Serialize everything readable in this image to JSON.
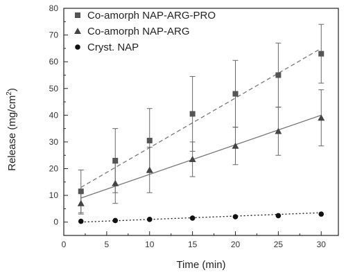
{
  "chart_data": {
    "type": "scatter",
    "title": "",
    "xlabel": "Time (min)",
    "ylabel_main": "Release (mg/cm",
    "ylabel_sup": "2",
    "ylabel_end": ")",
    "xlim": [
      0,
      32
    ],
    "ylim": [
      -5,
      80
    ],
    "xticks": [
      0,
      5,
      10,
      15,
      20,
      25,
      30
    ],
    "yticks": [
      0,
      10,
      20,
      30,
      40,
      50,
      60,
      70,
      80
    ],
    "grid": false,
    "legend_position": "top-left",
    "x": [
      2,
      6,
      10,
      15,
      20,
      25,
      30
    ],
    "series": [
      {
        "name": "Co-amorph NAP-ARG-PRO",
        "marker": "square",
        "color": "#555555",
        "values": [
          11.5,
          23,
          30.5,
          40.5,
          48,
          55,
          63
        ],
        "err": [
          8,
          12,
          12,
          14,
          12.5,
          12,
          11
        ],
        "fit": {
          "x": [
            2,
            30
          ],
          "y": [
            13,
            65
          ],
          "style": "dashed"
        }
      },
      {
        "name": "Co-amorph NAP-ARG",
        "marker": "triangle",
        "color": "#444444",
        "values": [
          7,
          14.5,
          19.5,
          23.5,
          28.5,
          34,
          39
        ],
        "err": [
          4,
          7.5,
          8.5,
          6.5,
          7,
          9,
          10.5
        ],
        "fit": {
          "x": [
            2,
            30
          ],
          "y": [
            9,
            40
          ],
          "style": "solid"
        }
      },
      {
        "name": "Cryst. NAP",
        "marker": "circle",
        "color": "#111111",
        "values": [
          0.3,
          0.6,
          1,
          1.5,
          2,
          2.4,
          3
        ],
        "err": [
          0,
          0,
          0,
          0,
          0,
          0,
          0
        ],
        "fit": {
          "x": [
            2,
            30
          ],
          "y": [
            0,
            3.5
          ],
          "style": "dotted"
        }
      }
    ]
  }
}
